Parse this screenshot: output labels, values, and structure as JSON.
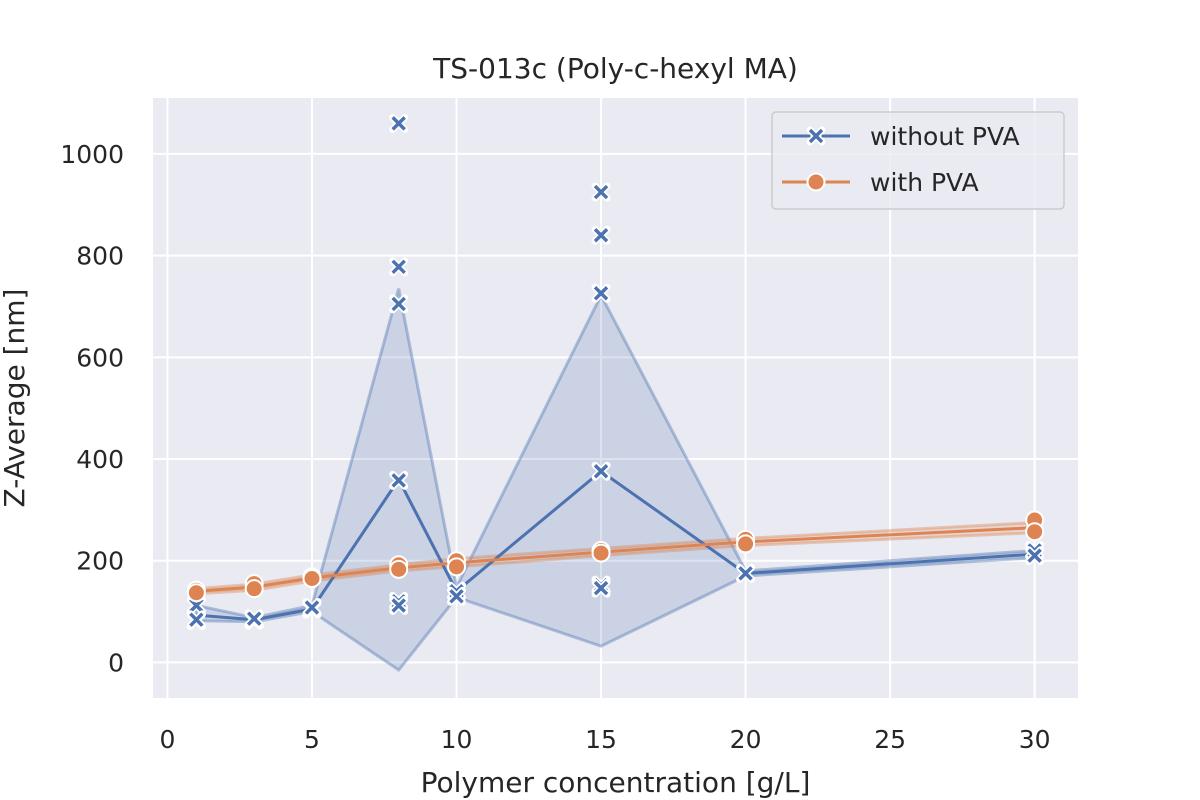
{
  "chart_data": {
    "type": "line",
    "title": "TS-013c (Poly-c-hexyl MA)",
    "xlabel": "Polymer concentration [g/L]",
    "ylabel": "Z-Average [nm]",
    "xlim": [
      -0.5,
      31.5
    ],
    "ylim": [
      -70,
      1110
    ],
    "xticks": [
      0,
      5,
      10,
      15,
      20,
      25,
      30
    ],
    "yticks": [
      0,
      200,
      400,
      600,
      800,
      1000
    ],
    "grid": true,
    "legend_position": "top-right",
    "series": [
      {
        "name": "without PVA",
        "color": "#4c72b0",
        "marker": "x",
        "x": [
          1,
          3,
          5,
          8,
          10,
          15,
          20,
          30
        ],
        "mean": [
          93,
          84,
          105,
          360,
          140,
          376,
          175,
          213
        ],
        "band_lower": [
          82,
          80,
          100,
          -15,
          128,
          32,
          170,
          206
        ],
        "band_upper": [
          112,
          88,
          112,
          735,
          148,
          722,
          180,
          220
        ],
        "points": [
          {
            "x": 1,
            "y": 112
          },
          {
            "x": 1,
            "y": 82
          },
          {
            "x": 1,
            "y": 84
          },
          {
            "x": 3,
            "y": 83
          },
          {
            "x": 3,
            "y": 86
          },
          {
            "x": 5,
            "y": 105
          },
          {
            "x": 5,
            "y": 108
          },
          {
            "x": 8,
            "y": 1060
          },
          {
            "x": 8,
            "y": 778
          },
          {
            "x": 8,
            "y": 705
          },
          {
            "x": 8,
            "y": 358
          },
          {
            "x": 8,
            "y": 120
          },
          {
            "x": 8,
            "y": 112
          },
          {
            "x": 10,
            "y": 140
          },
          {
            "x": 10,
            "y": 130
          },
          {
            "x": 15,
            "y": 925
          },
          {
            "x": 15,
            "y": 840
          },
          {
            "x": 15,
            "y": 726
          },
          {
            "x": 15,
            "y": 376
          },
          {
            "x": 15,
            "y": 152
          },
          {
            "x": 15,
            "y": 146
          },
          {
            "x": 20,
            "y": 175
          },
          {
            "x": 30,
            "y": 220
          },
          {
            "x": 30,
            "y": 210
          }
        ]
      },
      {
        "name": "with PVA",
        "color": "#dd8452",
        "marker": "o",
        "x": [
          1,
          3,
          5,
          8,
          10,
          15,
          20,
          30
        ],
        "mean": [
          140,
          148,
          166,
          186,
          196,
          217,
          237,
          265
        ],
        "band_lower": [
          135,
          142,
          160,
          180,
          188,
          210,
          230,
          255
        ],
        "band_upper": [
          145,
          154,
          172,
          192,
          204,
          224,
          244,
          275
        ],
        "points": [
          {
            "x": 1,
            "y": 142
          },
          {
            "x": 1,
            "y": 137
          },
          {
            "x": 3,
            "y": 155
          },
          {
            "x": 3,
            "y": 145
          },
          {
            "x": 5,
            "y": 168
          },
          {
            "x": 5,
            "y": 165
          },
          {
            "x": 8,
            "y": 192
          },
          {
            "x": 8,
            "y": 183
          },
          {
            "x": 10,
            "y": 200
          },
          {
            "x": 10,
            "y": 188
          },
          {
            "x": 15,
            "y": 220
          },
          {
            "x": 15,
            "y": 215
          },
          {
            "x": 20,
            "y": 242
          },
          {
            "x": 20,
            "y": 233
          },
          {
            "x": 30,
            "y": 280
          },
          {
            "x": 30,
            "y": 257
          }
        ]
      }
    ]
  }
}
